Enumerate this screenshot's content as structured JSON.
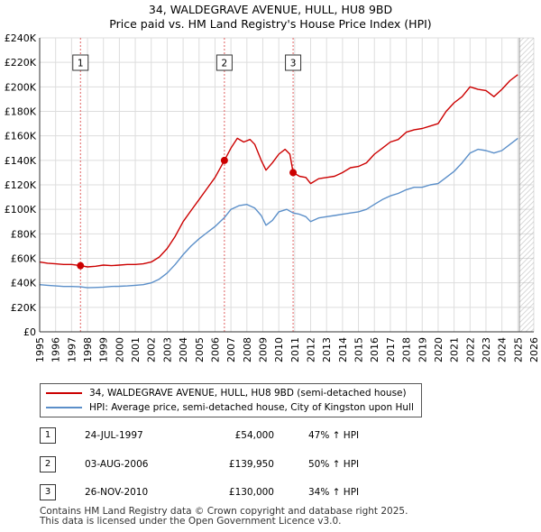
{
  "title_line1": "34, WALDEGRAVE AVENUE, HULL, HU8 9BD",
  "title_line2": "Price paid vs. HM Land Registry's House Price Index (HPI)",
  "legend": {
    "property_label": "34, WALDEGRAVE AVENUE, HULL, HU8 9BD (semi-detached house)",
    "hpi_label": "HPI: Average price, semi-detached house, City of Kingston upon Hull"
  },
  "colors": {
    "property": "#cc0000",
    "hpi": "#5b8fc9",
    "marker_line": "#e06060",
    "grid": "#dddddd",
    "future": "#999999"
  },
  "sales": [
    {
      "num": "1",
      "date": "24-JUL-1997",
      "price": "£54,000",
      "pct": "47% ↑ HPI"
    },
    {
      "num": "2",
      "date": "03-AUG-2006",
      "price": "£139,950",
      "pct": "50% ↑ HPI"
    },
    {
      "num": "3",
      "date": "26-NOV-2010",
      "price": "£130,000",
      "pct": "34% ↑ HPI"
    }
  ],
  "footer_line1": "Contains HM Land Registry data © Crown copyright and database right 2025.",
  "footer_line2": "This data is licensed under the Open Government Licence v3.0.",
  "chart_data": {
    "type": "line",
    "title": "34, WALDEGRAVE AVENUE, HULL, HU8 9BD — Price paid vs. HM Land Registry's House Price Index (HPI)",
    "xlim": [
      1995,
      2026
    ],
    "ylim": [
      0,
      240000
    ],
    "x_ticks": [
      "1995",
      "1996",
      "1997",
      "1998",
      "1999",
      "2000",
      "2001",
      "2002",
      "2003",
      "2004",
      "2005",
      "2006",
      "2007",
      "2008",
      "2009",
      "2010",
      "2011",
      "2012",
      "2013",
      "2014",
      "2015",
      "2016",
      "2017",
      "2018",
      "2019",
      "2020",
      "2021",
      "2022",
      "2023",
      "2024",
      "2025",
      "2026"
    ],
    "y_ticks": [
      {
        "value": 0,
        "label": "£0"
      },
      {
        "value": 20000,
        "label": "£20K"
      },
      {
        "value": 40000,
        "label": "£40K"
      },
      {
        "value": 60000,
        "label": "£60K"
      },
      {
        "value": 80000,
        "label": "£80K"
      },
      {
        "value": 100000,
        "label": "£100K"
      },
      {
        "value": 120000,
        "label": "£120K"
      },
      {
        "value": 140000,
        "label": "£140K"
      },
      {
        "value": 160000,
        "label": "£160K"
      },
      {
        "value": 180000,
        "label": "£180K"
      },
      {
        "value": 200000,
        "label": "£200K"
      },
      {
        "value": 220000,
        "label": "£220K"
      },
      {
        "value": 240000,
        "label": "£240K"
      }
    ],
    "future_from": 2025.1,
    "sale_markers": [
      {
        "label": "1",
        "x": 1997.56,
        "y": 54000
      },
      {
        "label": "2",
        "x": 2006.59,
        "y": 139950
      },
      {
        "label": "3",
        "x": 2010.9,
        "y": 130000
      }
    ],
    "series": [
      {
        "name": "34, WALDEGRAVE AVENUE, HULL, HU8 9BD (semi-detached house)",
        "points": [
          [
            1995.0,
            57000
          ],
          [
            1995.5,
            56000
          ],
          [
            1996.0,
            55500
          ],
          [
            1996.5,
            55000
          ],
          [
            1997.0,
            55000
          ],
          [
            1997.56,
            54000
          ],
          [
            1998.0,
            53000
          ],
          [
            1998.5,
            53500
          ],
          [
            1999.0,
            54500
          ],
          [
            1999.5,
            54000
          ],
          [
            2000.0,
            54500
          ],
          [
            2000.5,
            55000
          ],
          [
            2001.0,
            55000
          ],
          [
            2001.5,
            55500
          ],
          [
            2002.0,
            57000
          ],
          [
            2002.5,
            61000
          ],
          [
            2003.0,
            68000
          ],
          [
            2003.5,
            78000
          ],
          [
            2004.0,
            90000
          ],
          [
            2004.5,
            99000
          ],
          [
            2005.0,
            108000
          ],
          [
            2005.5,
            117000
          ],
          [
            2006.0,
            126000
          ],
          [
            2006.59,
            139950
          ],
          [
            2007.0,
            150000
          ],
          [
            2007.4,
            158000
          ],
          [
            2007.8,
            155000
          ],
          [
            2008.2,
            157000
          ],
          [
            2008.5,
            153000
          ],
          [
            2008.9,
            140000
          ],
          [
            2009.2,
            132000
          ],
          [
            2009.6,
            138000
          ],
          [
            2010.0,
            145000
          ],
          [
            2010.4,
            149000
          ],
          [
            2010.7,
            145000
          ],
          [
            2010.9,
            130000
          ],
          [
            2011.3,
            127000
          ],
          [
            2011.7,
            126000
          ],
          [
            2012.0,
            121000
          ],
          [
            2012.5,
            125000
          ],
          [
            2013.0,
            126000
          ],
          [
            2013.5,
            127000
          ],
          [
            2014.0,
            130000
          ],
          [
            2014.5,
            134000
          ],
          [
            2015.0,
            135000
          ],
          [
            2015.5,
            138000
          ],
          [
            2016.0,
            145000
          ],
          [
            2016.5,
            150000
          ],
          [
            2017.0,
            155000
          ],
          [
            2017.5,
            157000
          ],
          [
            2018.0,
            163000
          ],
          [
            2018.5,
            165000
          ],
          [
            2019.0,
            166000
          ],
          [
            2019.5,
            168000
          ],
          [
            2020.0,
            170000
          ],
          [
            2020.5,
            180000
          ],
          [
            2021.0,
            187000
          ],
          [
            2021.5,
            192000
          ],
          [
            2022.0,
            200000
          ],
          [
            2022.5,
            198000
          ],
          [
            2023.0,
            197000
          ],
          [
            2023.5,
            192000
          ],
          [
            2024.0,
            198000
          ],
          [
            2024.5,
            205000
          ],
          [
            2025.0,
            210000
          ]
        ]
      },
      {
        "name": "HPI: Average price, semi-detached house, City of Kingston upon Hull",
        "points": [
          [
            1995.0,
            38500
          ],
          [
            1995.5,
            38000
          ],
          [
            1996.0,
            37500
          ],
          [
            1996.5,
            37000
          ],
          [
            1997.0,
            37000
          ],
          [
            1997.56,
            36700
          ],
          [
            1998.0,
            36000
          ],
          [
            1998.5,
            36200
          ],
          [
            1999.0,
            36500
          ],
          [
            1999.5,
            37000
          ],
          [
            2000.0,
            37200
          ],
          [
            2000.5,
            37500
          ],
          [
            2001.0,
            38000
          ],
          [
            2001.5,
            38500
          ],
          [
            2002.0,
            40000
          ],
          [
            2002.5,
            43000
          ],
          [
            2003.0,
            48000
          ],
          [
            2003.5,
            55000
          ],
          [
            2004.0,
            63000
          ],
          [
            2004.5,
            70000
          ],
          [
            2005.0,
            76000
          ],
          [
            2005.5,
            81000
          ],
          [
            2006.0,
            86000
          ],
          [
            2006.59,
            93300
          ],
          [
            2007.0,
            100000
          ],
          [
            2007.5,
            103000
          ],
          [
            2008.0,
            104000
          ],
          [
            2008.5,
            101000
          ],
          [
            2008.9,
            95000
          ],
          [
            2009.2,
            87000
          ],
          [
            2009.6,
            91000
          ],
          [
            2010.0,
            98000
          ],
          [
            2010.5,
            100000
          ],
          [
            2010.9,
            97000
          ],
          [
            2011.3,
            96000
          ],
          [
            2011.7,
            94000
          ],
          [
            2012.0,
            90000
          ],
          [
            2012.5,
            93000
          ],
          [
            2013.0,
            94000
          ],
          [
            2013.5,
            95000
          ],
          [
            2014.0,
            96000
          ],
          [
            2014.5,
            97000
          ],
          [
            2015.0,
            98000
          ],
          [
            2015.5,
            100000
          ],
          [
            2016.0,
            104000
          ],
          [
            2016.5,
            108000
          ],
          [
            2017.0,
            111000
          ],
          [
            2017.5,
            113000
          ],
          [
            2018.0,
            116000
          ],
          [
            2018.5,
            118000
          ],
          [
            2019.0,
            118000
          ],
          [
            2019.5,
            120000
          ],
          [
            2020.0,
            121000
          ],
          [
            2020.5,
            126000
          ],
          [
            2021.0,
            131000
          ],
          [
            2021.5,
            138000
          ],
          [
            2022.0,
            146000
          ],
          [
            2022.5,
            149000
          ],
          [
            2023.0,
            148000
          ],
          [
            2023.5,
            146000
          ],
          [
            2024.0,
            148000
          ],
          [
            2024.5,
            153000
          ],
          [
            2025.0,
            158000
          ]
        ]
      }
    ]
  }
}
